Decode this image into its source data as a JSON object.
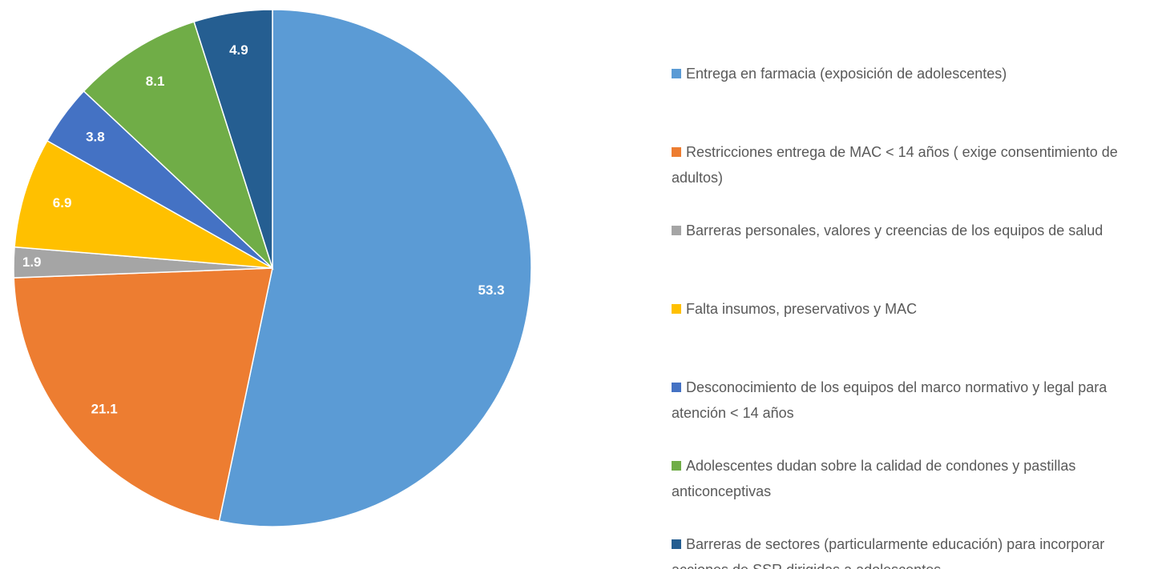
{
  "chart_data": {
    "type": "pie",
    "categories": [
      "Entrega en farmacia (exposición de adolescentes)",
      "Restricciones entrega de MAC < 14 años ( exige consentimiento de adultos)",
      "Barreras personales, valores y creencias de los equipos de salud",
      "Falta insumos, preservativos y MAC",
      "Desconocimiento de los equipos del marco normativo y legal para atención < 14 años",
      "Adolescentes dudan sobre la calidad de condones y pastillas anticonceptivas",
      "Barreras de sectores (particularmente educación) para incorporar acciones de SSR dirigidas a adolescentes"
    ],
    "values": [
      53.3,
      21.1,
      1.9,
      6.9,
      3.8,
      8.1,
      4.9
    ],
    "colors": [
      "#5b9bd5",
      "#ed7d31",
      "#a5a5a5",
      "#ffc000",
      "#4472c4",
      "#70ad47",
      "#255e91"
    ],
    "legend": "right"
  }
}
